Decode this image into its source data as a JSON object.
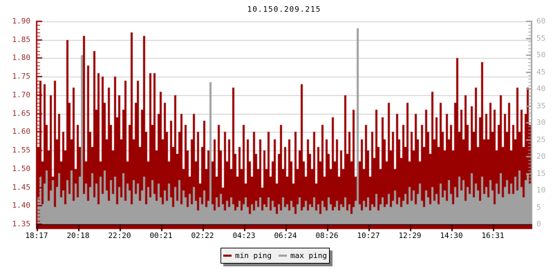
{
  "chart_data": {
    "type": "bar",
    "title": "10.150.209.215",
    "grid": {
      "show": true,
      "color": "#c8c8c8"
    },
    "axis_line_colors": {
      "left": "#990000",
      "right": "#a0a0a0",
      "bottom": "#990000",
      "baseline": "#000000",
      "x_tick": "#3a0000"
    },
    "x_axis": {
      "tick_labels": [
        "18:17",
        "20:18",
        "22:20",
        "00:21",
        "02:22",
        "04:23",
        "06:24",
        "08:26",
        "10:27",
        "12:29",
        "14:30",
        "16:31"
      ]
    },
    "left_axis": {
      "color": "#9b2d2d",
      "min": 1.35,
      "max": 1.9,
      "tick_labels": [
        "1.90",
        "1.85",
        "1.80",
        "1.75",
        "1.70",
        "1.65",
        "1.60",
        "1.55",
        "1.50",
        "1.45",
        "1.40",
        "1.35"
      ]
    },
    "right_axis": {
      "color": "#b0b0b0",
      "min": 0,
      "max": 60,
      "tick_labels": [
        "60",
        "55",
        "50",
        "45",
        "40",
        "35",
        "30",
        "25",
        "20",
        "15",
        "10",
        "5",
        "0"
      ]
    },
    "legend": {
      "position": "bottom-center",
      "background": "#f0f0f0",
      "border": "#000000",
      "entries": [
        "min ping",
        "max ping"
      ]
    },
    "series": [
      {
        "name": "min ping",
        "color": "#990000",
        "axis": "left",
        "values": [
          1.56,
          1.74,
          1.52,
          1.73,
          1.62,
          1.55,
          1.7,
          1.48,
          1.74,
          1.58,
          1.65,
          1.52,
          1.6,
          1.55,
          1.85,
          1.68,
          1.58,
          1.72,
          1.5,
          1.62,
          1.56,
          1.48,
          1.86,
          1.52,
          1.78,
          1.6,
          1.56,
          1.82,
          1.66,
          1.76,
          1.52,
          1.75,
          1.68,
          1.58,
          1.72,
          1.62,
          1.55,
          1.75,
          1.64,
          1.7,
          1.58,
          1.66,
          1.74,
          1.52,
          1.62,
          1.87,
          1.58,
          1.68,
          1.74,
          1.56,
          1.66,
          1.86,
          1.6,
          1.52,
          1.76,
          1.62,
          1.76,
          1.55,
          1.65,
          1.71,
          1.58,
          1.68,
          1.6,
          1.52,
          1.63,
          1.56,
          1.7,
          1.54,
          1.6,
          1.65,
          1.5,
          1.62,
          1.55,
          1.48,
          1.58,
          1.65,
          1.52,
          1.6,
          1.46,
          1.56,
          1.63,
          1.5,
          1.55,
          1.6,
          1.52,
          1.58,
          1.48,
          1.62,
          1.55,
          1.45,
          1.6,
          1.52,
          1.58,
          1.5,
          1.72,
          1.54,
          1.48,
          1.56,
          1.5,
          1.62,
          1.46,
          1.58,
          1.52,
          1.48,
          1.6,
          1.54,
          1.5,
          1.58,
          1.45,
          1.55,
          1.5,
          1.6,
          1.48,
          1.52,
          1.58,
          1.46,
          1.54,
          1.62,
          1.5,
          1.56,
          1.48,
          1.58,
          1.52,
          1.46,
          1.6,
          1.5,
          1.55,
          1.73,
          1.52,
          1.48,
          1.58,
          1.54,
          1.5,
          1.6,
          1.46,
          1.56,
          1.52,
          1.62,
          1.48,
          1.58,
          1.54,
          1.5,
          1.64,
          1.52,
          1.58,
          1.48,
          1.55,
          1.5,
          1.7,
          1.54,
          1.6,
          1.52,
          1.66,
          1.48,
          1.56,
          1.52,
          1.58,
          1.5,
          1.62,
          1.55,
          1.48,
          1.6,
          1.53,
          1.66,
          1.56,
          1.5,
          1.64,
          1.58,
          1.52,
          1.68,
          1.55,
          1.6,
          1.5,
          1.65,
          1.58,
          1.53,
          1.62,
          1.56,
          1.68,
          1.52,
          1.6,
          1.55,
          1.65,
          1.58,
          1.52,
          1.62,
          1.56,
          1.66,
          1.6,
          1.54,
          1.71,
          1.58,
          1.64,
          1.56,
          1.68,
          1.6,
          1.55,
          1.65,
          1.58,
          1.62,
          1.55,
          1.68,
          1.8,
          1.6,
          1.66,
          1.58,
          1.7,
          1.62,
          1.55,
          1.67,
          1.6,
          1.72,
          1.56,
          1.64,
          1.79,
          1.58,
          1.65,
          1.58,
          1.68,
          1.6,
          1.66,
          1.55,
          1.62,
          1.7,
          1.56,
          1.65,
          1.6,
          1.68,
          1.55,
          1.62,
          1.58,
          1.72,
          1.6,
          1.66,
          1.56,
          1.65,
          1.72,
          1.62
        ]
      },
      {
        "name": "max ping",
        "color": "#a0a0a0",
        "axis": "right",
        "values": [
          8,
          14,
          6,
          12,
          16,
          7,
          10,
          13,
          5,
          11,
          15,
          8,
          10,
          6,
          13,
          9,
          16,
          7,
          12,
          8,
          14,
          50,
          9,
          12,
          7,
          11,
          15,
          8,
          12,
          6,
          14,
          9,
          16,
          10,
          7,
          13,
          9,
          14,
          6,
          11,
          8,
          15,
          7,
          12,
          10,
          6,
          13,
          9,
          12,
          7,
          10,
          14,
          6,
          11,
          8,
          13,
          9,
          7,
          12,
          8,
          6,
          10,
          7,
          12,
          8,
          5,
          11,
          7,
          13,
          6,
          10,
          8,
          5,
          9,
          6,
          11,
          7,
          4,
          8,
          6,
          10,
          5,
          7,
          42,
          6,
          4,
          8,
          5,
          9,
          6,
          4,
          7,
          5,
          8,
          6,
          4,
          5,
          7,
          4,
          6,
          8,
          5,
          3,
          6,
          4,
          7,
          5,
          8,
          4,
          6,
          5,
          8,
          4,
          7,
          5,
          3,
          6,
          4,
          8,
          5,
          6,
          4,
          7,
          5,
          3,
          6,
          8,
          4,
          5,
          7,
          4,
          6,
          5,
          8,
          4,
          6,
          3,
          7,
          5,
          4,
          8,
          6,
          4,
          5,
          7,
          4,
          6,
          5,
          8,
          4,
          6,
          3,
          5,
          7,
          58,
          6,
          4,
          7,
          5,
          8,
          4,
          6,
          5,
          9,
          4,
          6,
          8,
          5,
          6,
          9,
          5,
          7,
          10,
          6,
          8,
          5,
          7,
          9,
          6,
          11,
          7,
          10,
          6,
          9,
          12,
          7,
          5,
          10,
          8,
          6,
          11,
          7,
          9,
          6,
          12,
          8,
          10,
          7,
          13,
          9,
          6,
          11,
          8,
          14,
          10,
          13,
          7,
          11,
          9,
          15,
          8,
          12,
          10,
          7,
          14,
          9,
          11,
          8,
          13,
          10,
          6,
          12,
          9,
          15,
          8,
          11,
          13,
          9,
          12,
          9,
          14,
          10,
          16,
          11,
          8,
          13,
          15,
          12
        ]
      }
    ]
  }
}
